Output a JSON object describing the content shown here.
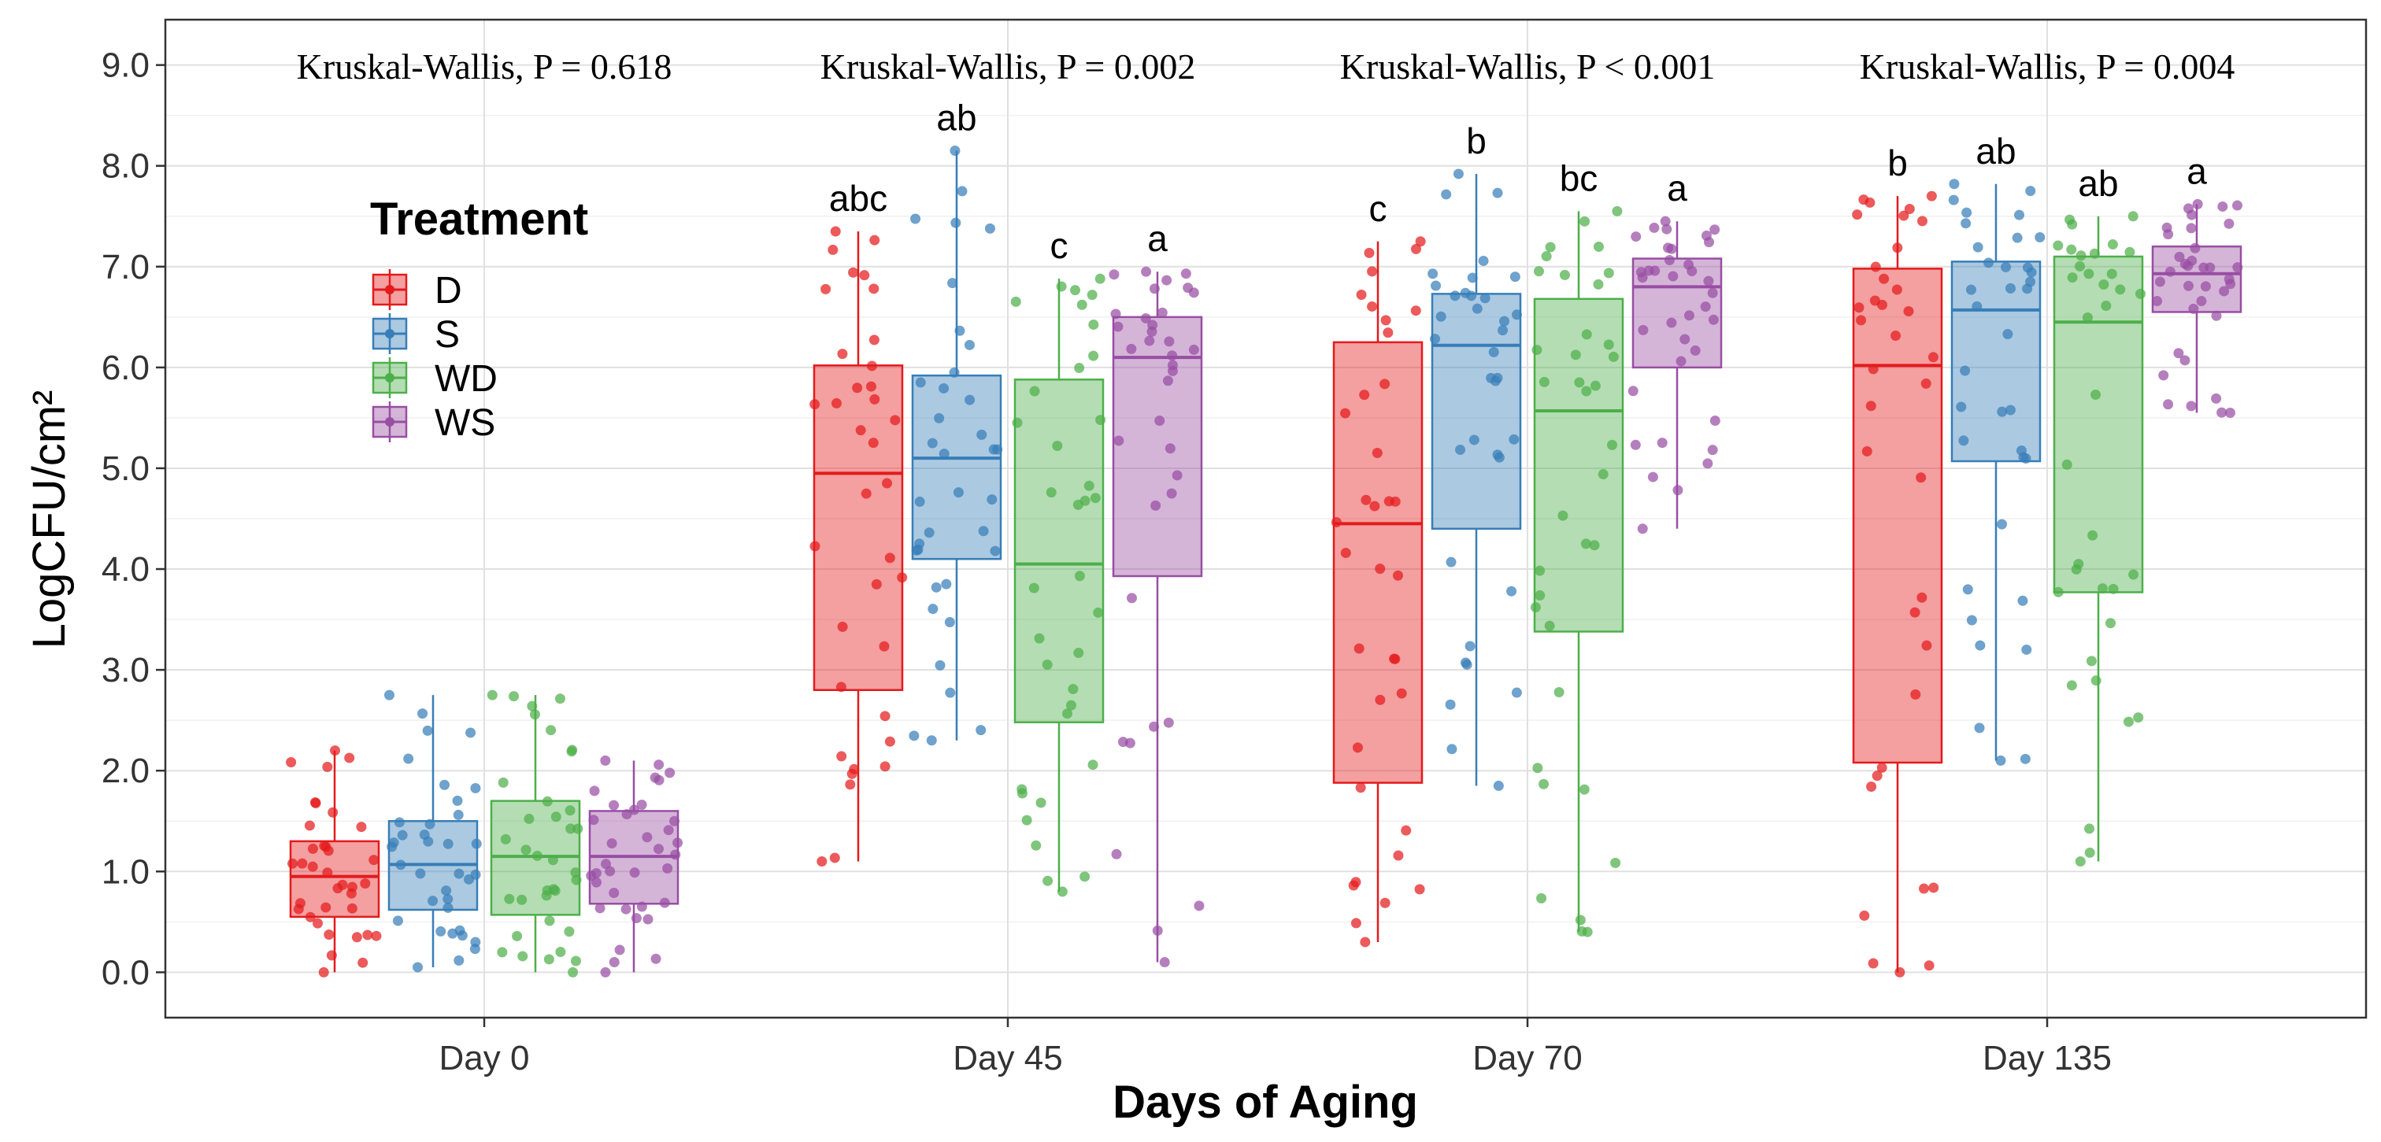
{
  "chart_data": {
    "type": "boxplot",
    "xlabel": "Days of Aging",
    "ylabel": "LogCFU/cm²",
    "ylim": [
      -0.45,
      9.45
    ],
    "yticks": [
      "0.0",
      "1.0",
      "2.0",
      "3.0",
      "4.0",
      "5.0",
      "6.0",
      "7.0",
      "8.0",
      "9.0"
    ],
    "grid": true,
    "categories": [
      "Day 0",
      "Day 45",
      "Day 70",
      "Day 135"
    ],
    "kruskal_wallis": [
      "Kruskal-Wallis, P = 0.618",
      "Kruskal-Wallis, P = 0.002",
      "Kruskal-Wallis, P < 0.001",
      "Kruskal-Wallis, P = 0.004"
    ],
    "legend": {
      "title": "Treatment",
      "position": "top-left",
      "entries": [
        "D",
        "S",
        "WD",
        "WS"
      ]
    },
    "series": [
      {
        "name": "D",
        "color": "#E41A1C",
        "boxes": [
          {
            "min": 0.0,
            "q1": 0.55,
            "median": 0.95,
            "q3": 1.3,
            "max": 2.2,
            "letter": ""
          },
          {
            "min": 1.1,
            "q1": 2.8,
            "median": 4.95,
            "q3": 6.02,
            "max": 7.35,
            "letter": "abc"
          },
          {
            "min": 0.3,
            "q1": 1.88,
            "median": 4.45,
            "q3": 6.25,
            "max": 7.25,
            "letter": "c"
          },
          {
            "min": 0.0,
            "q1": 2.08,
            "median": 6.02,
            "q3": 6.98,
            "max": 7.7,
            "letter": "b"
          }
        ]
      },
      {
        "name": "S",
        "color": "#377EB8",
        "boxes": [
          {
            "min": 0.05,
            "q1": 0.62,
            "median": 1.07,
            "q3": 1.5,
            "max": 2.75,
            "letter": ""
          },
          {
            "min": 2.3,
            "q1": 4.1,
            "median": 5.1,
            "q3": 5.92,
            "max": 8.15,
            "letter": "ab"
          },
          {
            "min": 1.85,
            "q1": 4.4,
            "median": 6.22,
            "q3": 6.73,
            "max": 7.92,
            "letter": "b"
          },
          {
            "min": 2.1,
            "q1": 5.07,
            "median": 6.57,
            "q3": 7.05,
            "max": 7.82,
            "letter": "ab"
          }
        ]
      },
      {
        "name": "WD",
        "color": "#4DAF4A",
        "boxes": [
          {
            "min": 0.0,
            "q1": 0.57,
            "median": 1.15,
            "q3": 1.7,
            "max": 2.75,
            "letter": ""
          },
          {
            "min": 0.8,
            "q1": 2.48,
            "median": 4.05,
            "q3": 5.88,
            "max": 6.88,
            "letter": "c"
          },
          {
            "min": 0.4,
            "q1": 3.38,
            "median": 5.57,
            "q3": 6.68,
            "max": 7.55,
            "letter": "bc"
          },
          {
            "min": 1.1,
            "q1": 3.77,
            "median": 6.45,
            "q3": 7.1,
            "max": 7.5,
            "letter": "ab"
          }
        ]
      },
      {
        "name": "WS",
        "color": "#984EA3",
        "boxes": [
          {
            "min": 0.0,
            "q1": 0.68,
            "median": 1.15,
            "q3": 1.6,
            "max": 2.1,
            "letter": ""
          },
          {
            "min": 0.1,
            "q1": 3.93,
            "median": 6.1,
            "q3": 6.5,
            "max": 6.95,
            "letter": "a"
          },
          {
            "min": 4.4,
            "q1": 6.0,
            "median": 6.8,
            "q3": 7.08,
            "max": 7.45,
            "letter": "a"
          },
          {
            "min": 5.55,
            "q1": 6.55,
            "median": 6.93,
            "q3": 7.2,
            "max": 7.62,
            "letter": "a"
          }
        ]
      }
    ]
  }
}
